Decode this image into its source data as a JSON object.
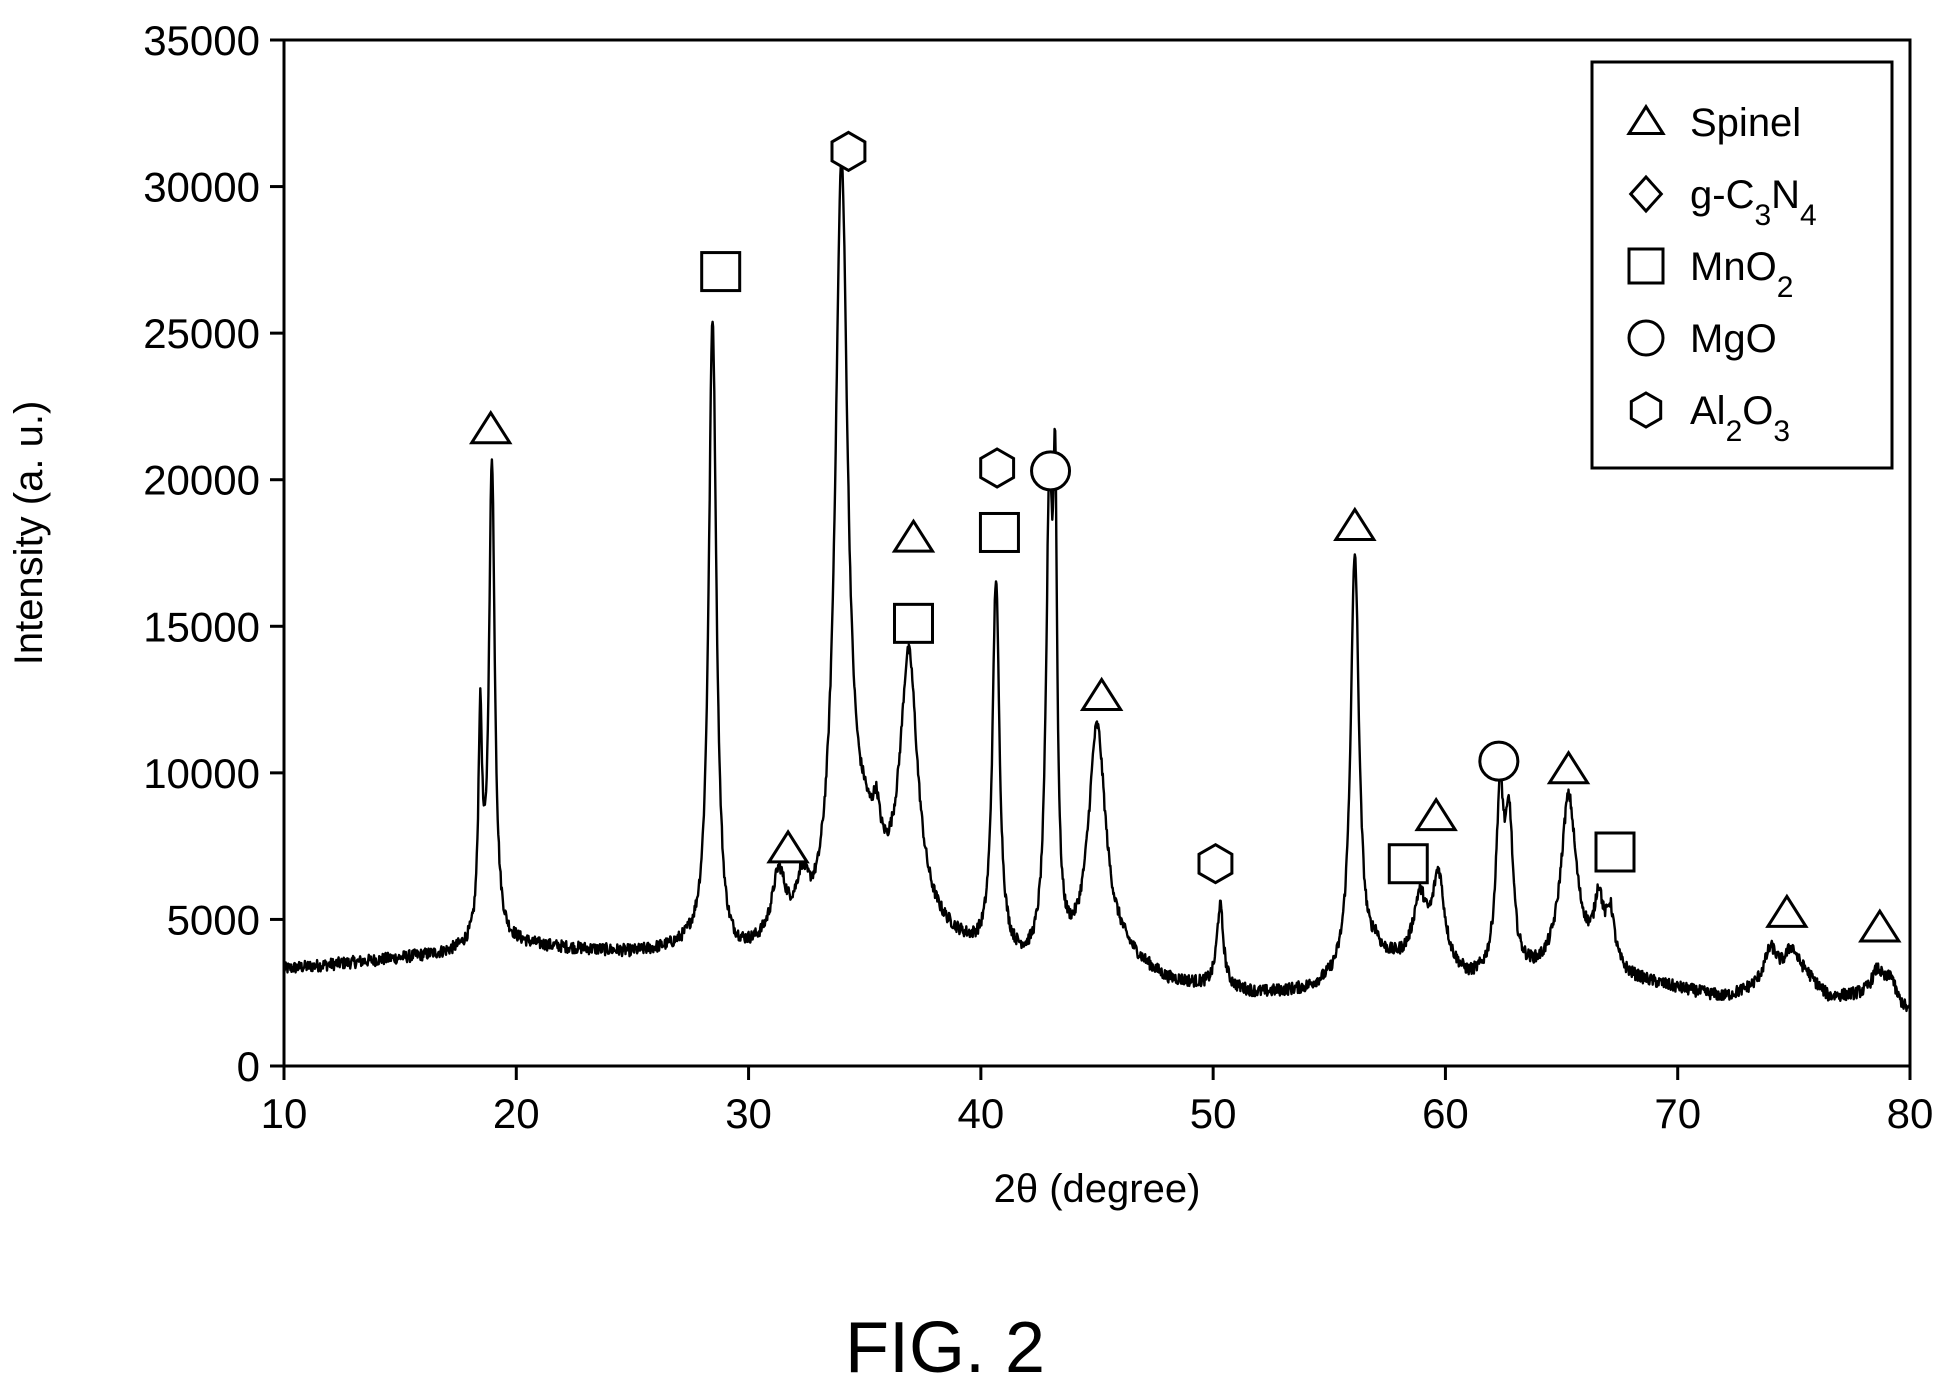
{
  "figure_label": "FIG. 2",
  "chart_data": {
    "type": "line",
    "title": "",
    "xlabel": "2θ (degree)",
    "ylabel": "Intensity (a. u.)",
    "xlim": [
      10,
      80
    ],
    "ylim": [
      0,
      35000
    ],
    "xticks": [
      10,
      20,
      30,
      40,
      50,
      60,
      70,
      80
    ],
    "yticks": [
      0,
      5000,
      10000,
      15000,
      20000,
      25000,
      30000,
      35000
    ],
    "grid": false,
    "legend_position": "top-right",
    "legend": [
      {
        "marker": "triangle",
        "label": "Spinel",
        "label_parts": [
          {
            "t": "Spinel"
          }
        ]
      },
      {
        "marker": "diamond",
        "label": "g-C3N4",
        "label_parts": [
          {
            "t": "g-C"
          },
          {
            "t": "3",
            "sub": true
          },
          {
            "t": "N"
          },
          {
            "t": "4",
            "sub": true
          }
        ]
      },
      {
        "marker": "square",
        "label": "MnO2",
        "label_parts": [
          {
            "t": "MnO"
          },
          {
            "t": "2",
            "sub": true
          }
        ]
      },
      {
        "marker": "circle",
        "label": "MgO",
        "label_parts": [
          {
            "t": "MgO"
          }
        ]
      },
      {
        "marker": "hexagon",
        "label": "Al2O3",
        "label_parts": [
          {
            "t": "Al"
          },
          {
            "t": "2",
            "sub": true
          },
          {
            "t": "O"
          },
          {
            "t": "3",
            "sub": true
          }
        ]
      }
    ],
    "baseline": [
      [
        10,
        3300
      ],
      [
        17,
        3800
      ],
      [
        18,
        3950
      ],
      [
        20,
        4100
      ],
      [
        25,
        3800
      ],
      [
        27.5,
        3900
      ],
      [
        29,
        3400
      ],
      [
        31,
        3900
      ],
      [
        33,
        4300
      ],
      [
        35,
        6800
      ],
      [
        36,
        5400
      ],
      [
        38,
        4400
      ],
      [
        40,
        3600
      ],
      [
        42,
        3200
      ],
      [
        44,
        3200
      ],
      [
        46,
        3600
      ],
      [
        48,
        2800
      ],
      [
        50,
        2600
      ],
      [
        52,
        2400
      ],
      [
        54,
        2500
      ],
      [
        56,
        2900
      ],
      [
        57.5,
        3400
      ],
      [
        60,
        3200
      ],
      [
        61,
        2800
      ],
      [
        63,
        3000
      ],
      [
        64,
        3000
      ],
      [
        66,
        3400
      ],
      [
        68,
        2900
      ],
      [
        70,
        2600
      ],
      [
        72,
        2300
      ],
      [
        73.5,
        2600
      ],
      [
        75.5,
        3000
      ],
      [
        76.5,
        2300
      ],
      [
        78,
        2400
      ],
      [
        79,
        2500
      ],
      [
        80,
        1800
      ]
    ],
    "peaks": [
      {
        "x": 18.45,
        "height": 7300,
        "width": 0.1
      },
      {
        "x": 18.95,
        "height": 16500,
        "width": 0.15
      },
      {
        "x": 28.45,
        "height": 21800,
        "width": 0.2
      },
      {
        "x": 31.3,
        "height": 2200,
        "width": 0.35
      },
      {
        "x": 32.3,
        "height": 1500,
        "width": 0.3
      },
      {
        "x": 34.0,
        "height": 25000,
        "width": 0.32
      },
      {
        "x": 35.5,
        "height": 1400,
        "width": 0.18
      },
      {
        "x": 36.9,
        "height": 8800,
        "width": 0.45
      },
      {
        "x": 40.65,
        "height": 12800,
        "width": 0.18
      },
      {
        "x": 42.95,
        "height": 15200,
        "width": 0.17
      },
      {
        "x": 43.2,
        "height": 13200,
        "width": 0.1
      },
      {
        "x": 45.0,
        "height": 8000,
        "width": 0.45
      },
      {
        "x": 50.3,
        "height": 2800,
        "width": 0.17
      },
      {
        "x": 56.1,
        "height": 14400,
        "width": 0.22
      },
      {
        "x": 57.0,
        "height": 500,
        "width": 0.2
      },
      {
        "x": 58.9,
        "height": 2200,
        "width": 0.35
      },
      {
        "x": 59.7,
        "height": 3000,
        "width": 0.3
      },
      {
        "x": 62.35,
        "height": 5900,
        "width": 0.2
      },
      {
        "x": 62.75,
        "height": 4700,
        "width": 0.2
      },
      {
        "x": 65.3,
        "height": 5800,
        "width": 0.4
      },
      {
        "x": 66.6,
        "height": 2100,
        "width": 0.22
      },
      {
        "x": 67.1,
        "height": 1800,
        "width": 0.22
      },
      {
        "x": 74.0,
        "height": 1200,
        "width": 0.35
      },
      {
        "x": 74.9,
        "height": 1000,
        "width": 0.35
      },
      {
        "x": 78.6,
        "height": 800,
        "width": 0.3
      },
      {
        "x": 79.2,
        "height": 600,
        "width": 0.15
      }
    ],
    "peak_markers": [
      {
        "marker": "triangle",
        "x": 18.9,
        "y": 21700
      },
      {
        "marker": "square",
        "x": 28.8,
        "y": 27100
      },
      {
        "marker": "triangle",
        "x": 31.7,
        "y": 7400
      },
      {
        "marker": "hexagon",
        "x": 34.3,
        "y": 31200
      },
      {
        "marker": "triangle",
        "x": 37.1,
        "y": 18000
      },
      {
        "marker": "square",
        "x": 37.1,
        "y": 15100
      },
      {
        "marker": "hexagon",
        "x": 40.7,
        "y": 20400
      },
      {
        "marker": "square",
        "x": 40.8,
        "y": 18200
      },
      {
        "marker": "circle",
        "x": 43.0,
        "y": 20300
      },
      {
        "marker": "triangle",
        "x": 45.2,
        "y": 12600
      },
      {
        "marker": "hexagon",
        "x": 50.1,
        "y": 6900
      },
      {
        "marker": "triangle",
        "x": 56.1,
        "y": 18400
      },
      {
        "marker": "square",
        "x": 58.4,
        "y": 6900
      },
      {
        "marker": "triangle",
        "x": 59.6,
        "y": 8500
      },
      {
        "marker": "circle",
        "x": 62.3,
        "y": 10400
      },
      {
        "marker": "triangle",
        "x": 65.3,
        "y": 10100
      },
      {
        "marker": "square",
        "x": 67.3,
        "y": 7300
      },
      {
        "marker": "triangle",
        "x": 74.7,
        "y": 5200
      },
      {
        "marker": "triangle",
        "x": 78.7,
        "y": 4700
      }
    ]
  }
}
